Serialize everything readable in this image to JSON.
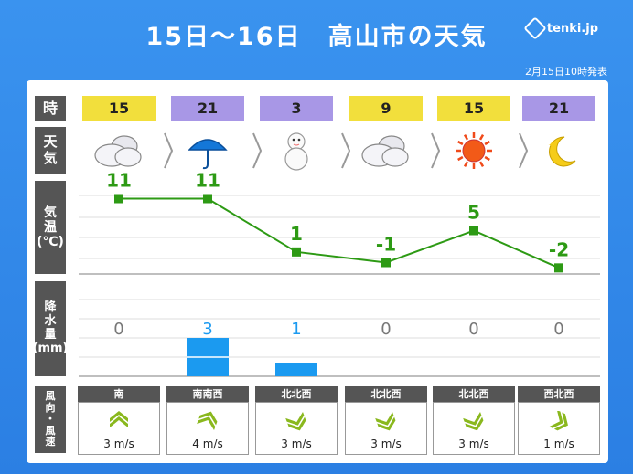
{
  "title": "15日～16日　高山市の天気",
  "logo": "tenki.jp",
  "issued": "2月15日10時発表",
  "row_labels": {
    "hour": "時",
    "weather": "天\n気",
    "temp": "気\n温\n(℃)",
    "rain": "降\n水\n量\n(mm)",
    "wind": "風\n向\n・\n風\n速"
  },
  "slots": [
    {
      "hour": "15",
      "period": "day",
      "icon": "cloudy-icon",
      "temp": "11",
      "rain": "0",
      "rain_color": "gray",
      "wind_dir": "南",
      "wind_speed": "3 m/s",
      "wind_icon": "wind-south-icon"
    },
    {
      "hour": "21",
      "period": "night",
      "icon": "umbrella-icon",
      "temp": "11",
      "rain": "3",
      "rain_color": "blue",
      "wind_dir": "南南西",
      "wind_speed": "4 m/s",
      "wind_icon": "wind-south-southwest-icon"
    },
    {
      "hour": "3",
      "period": "night",
      "icon": "snowman-icon",
      "temp": "1",
      "rain": "1",
      "rain_color": "blue",
      "wind_dir": "北北西",
      "wind_speed": "3 m/s",
      "wind_icon": "wind-north-northwest-icon"
    },
    {
      "hour": "9",
      "period": "day",
      "icon": "cloudy-icon",
      "temp": "-1",
      "rain": "0",
      "rain_color": "gray",
      "wind_dir": "北北西",
      "wind_speed": "3 m/s",
      "wind_icon": "wind-north-northwest-icon"
    },
    {
      "hour": "15",
      "period": "day",
      "icon": "sun-icon",
      "temp": "5",
      "rain": "0",
      "rain_color": "gray",
      "wind_dir": "北北西",
      "wind_speed": "3 m/s",
      "wind_icon": "wind-north-northwest-icon"
    },
    {
      "hour": "21",
      "period": "night",
      "icon": "moon-icon",
      "temp": "-2",
      "rain": "0",
      "rain_color": "gray",
      "wind_dir": "西北西",
      "wind_speed": "1 m/s",
      "wind_icon": "wind-west-northwest-icon"
    }
  ],
  "colors": {
    "day": "#f2df3c",
    "night": "#a897e6",
    "temp_line": "#2d9a14",
    "rain_bar": "#1b9af0",
    "panel_bg": "#ffffff"
  },
  "chart_data": {
    "type": "line",
    "series": [
      {
        "values": [
          11,
          11,
          1,
          -1,
          5,
          -2
        ]
      }
    ],
    "rain": [
      0,
      3,
      1,
      0,
      0,
      0
    ],
    "ylim": [
      -4,
      14
    ],
    "grid": true
  }
}
